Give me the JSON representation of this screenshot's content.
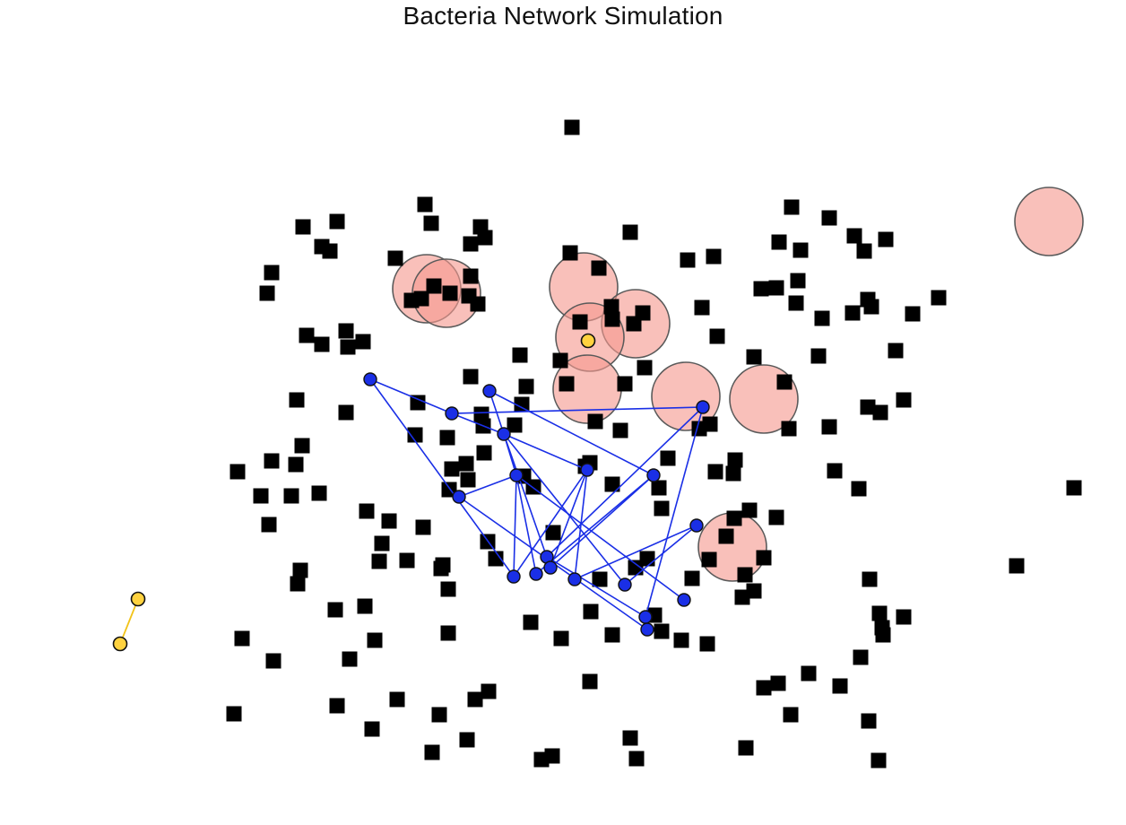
{
  "title": "Bacteria Network Simulation",
  "colors": {
    "background": "#ffffff",
    "food": "#000000",
    "zone_fill": "#f59a90",
    "zone_stroke": "#5a5a5a",
    "network_edge": "#1a2fe6",
    "network_node": "#1a2fe6",
    "isolated_edge": "#f2c319",
    "isolated_node": "#ffd23f",
    "node_stroke": "#111111"
  },
  "legend": []
}
